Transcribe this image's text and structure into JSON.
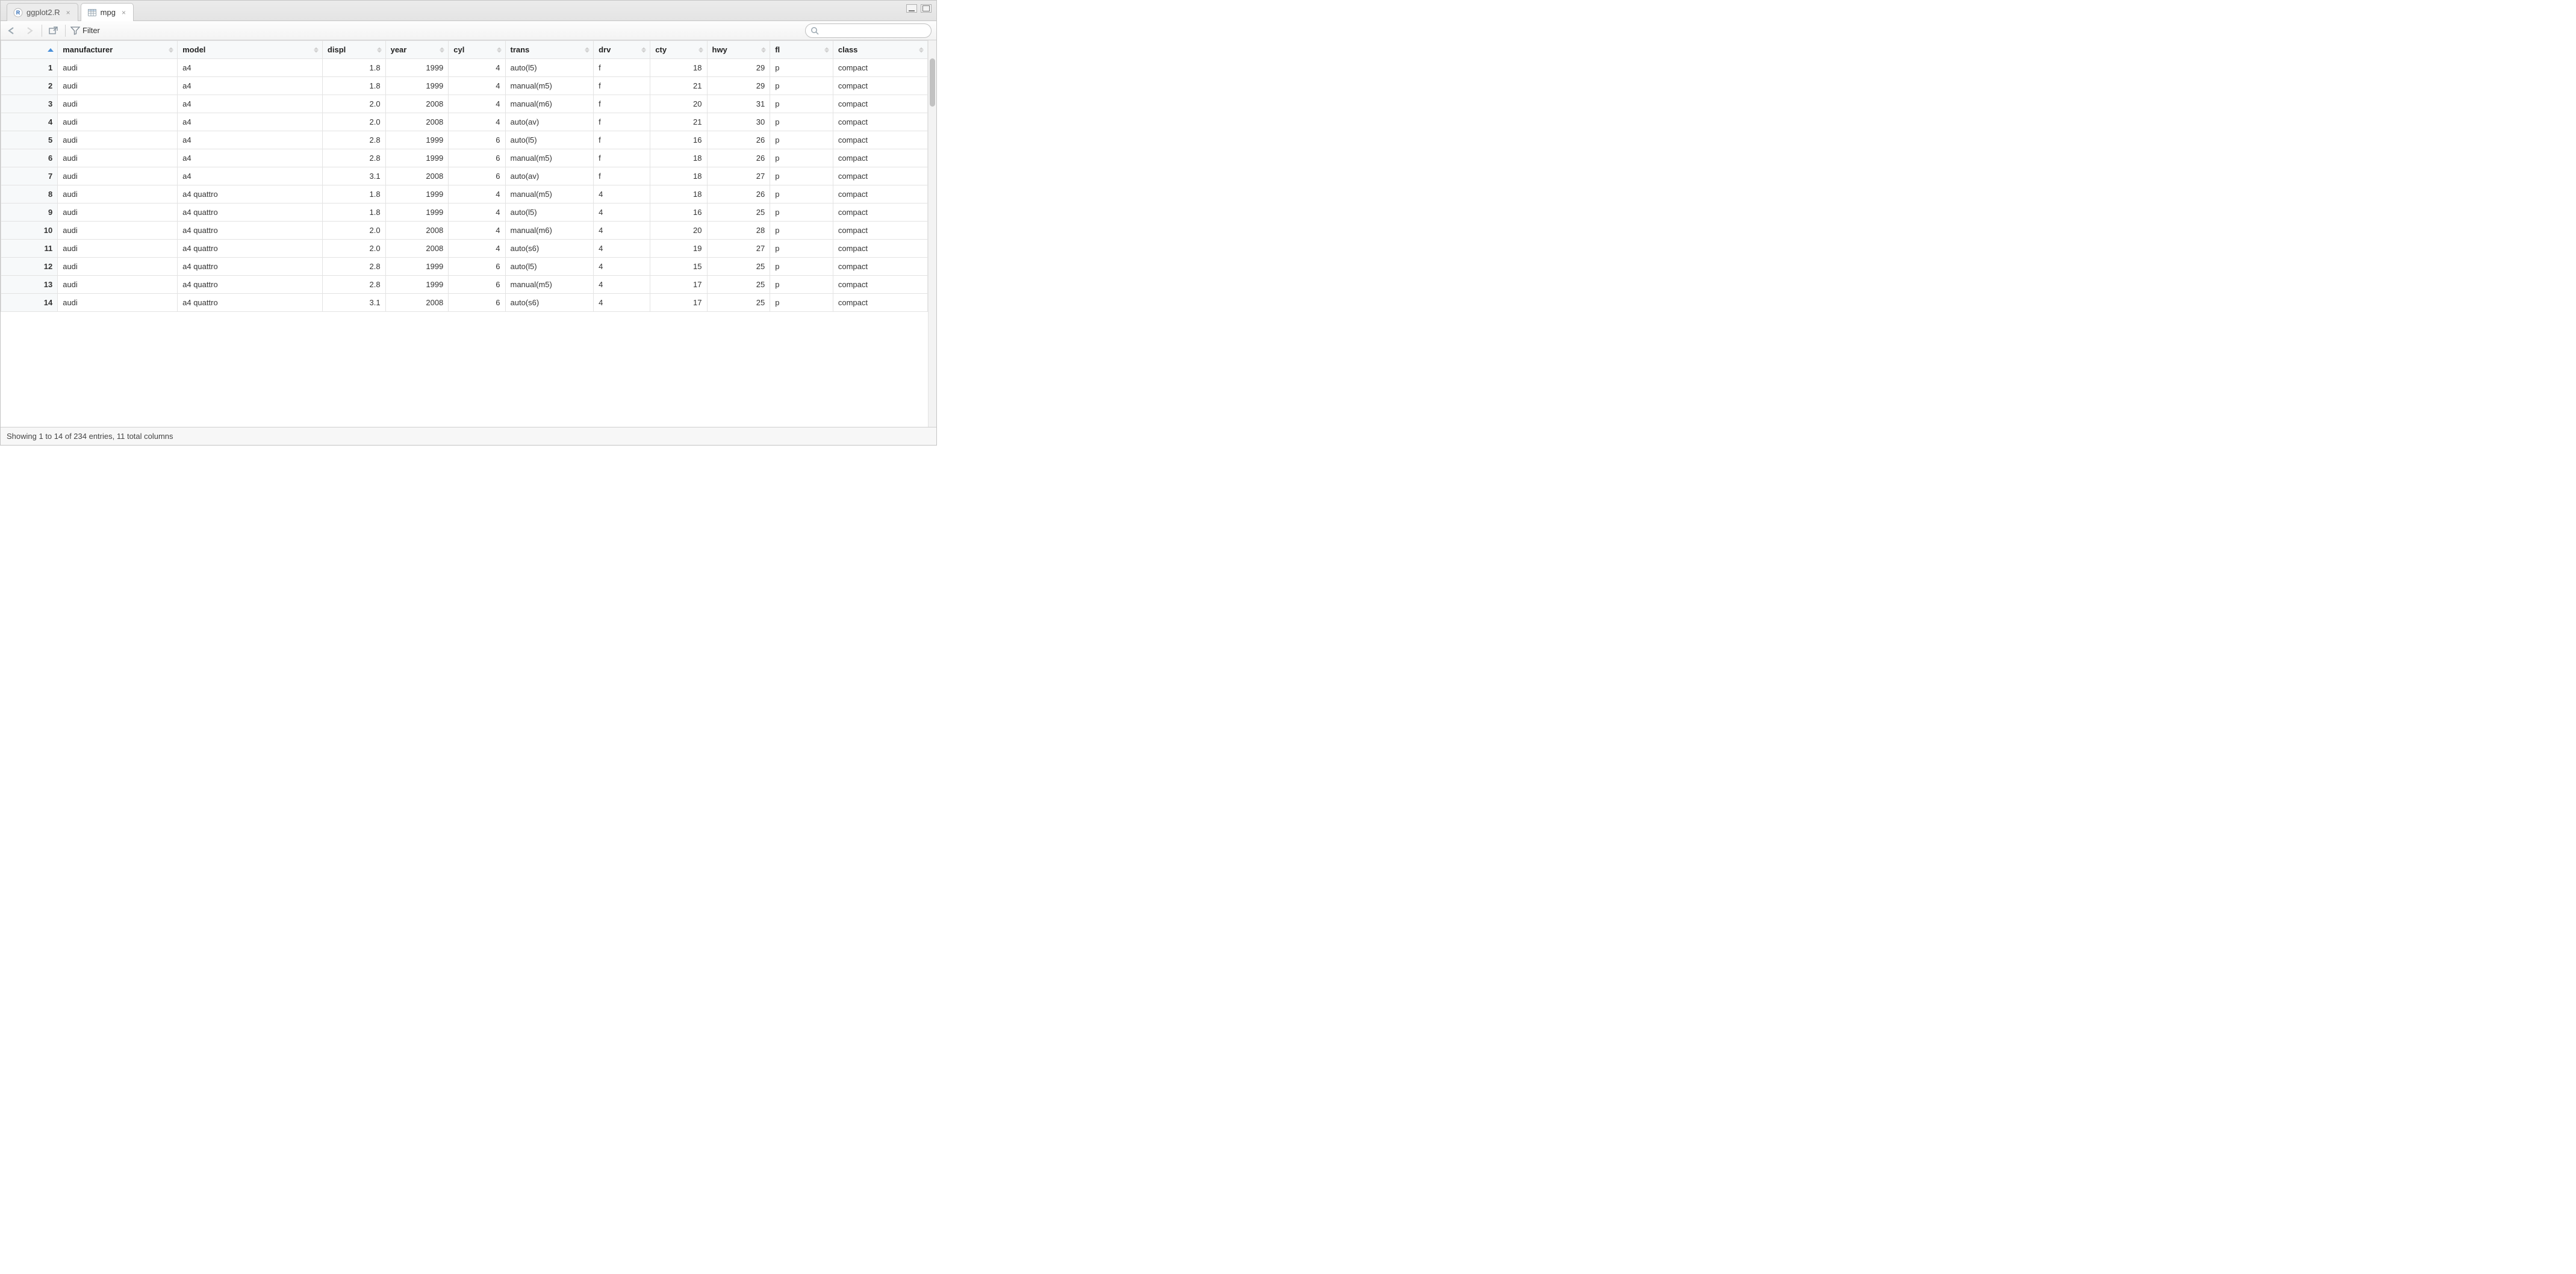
{
  "tabs": [
    {
      "label": "ggplot2.R",
      "active": false,
      "icon": "r-file"
    },
    {
      "label": "mpg",
      "active": true,
      "icon": "table"
    }
  ],
  "toolbar": {
    "filter_label": "Filter",
    "search_placeholder": ""
  },
  "table": {
    "row_number_sorted": "asc",
    "columns": [
      {
        "key": "manufacturer",
        "label": "manufacturer",
        "type": "text"
      },
      {
        "key": "model",
        "label": "model",
        "type": "text"
      },
      {
        "key": "displ",
        "label": "displ",
        "type": "num",
        "decimals": 1
      },
      {
        "key": "year",
        "label": "year",
        "type": "num"
      },
      {
        "key": "cyl",
        "label": "cyl",
        "type": "num"
      },
      {
        "key": "trans",
        "label": "trans",
        "type": "text"
      },
      {
        "key": "drv",
        "label": "drv",
        "type": "text"
      },
      {
        "key": "cty",
        "label": "cty",
        "type": "num"
      },
      {
        "key": "hwy",
        "label": "hwy",
        "type": "num"
      },
      {
        "key": "fl",
        "label": "fl",
        "type": "text"
      },
      {
        "key": "class",
        "label": "class",
        "type": "text"
      }
    ],
    "rows": [
      {
        "n": 1,
        "manufacturer": "audi",
        "model": "a4",
        "displ": 1.8,
        "year": 1999,
        "cyl": 4,
        "trans": "auto(l5)",
        "drv": "f",
        "cty": 18,
        "hwy": 29,
        "fl": "p",
        "class": "compact"
      },
      {
        "n": 2,
        "manufacturer": "audi",
        "model": "a4",
        "displ": 1.8,
        "year": 1999,
        "cyl": 4,
        "trans": "manual(m5)",
        "drv": "f",
        "cty": 21,
        "hwy": 29,
        "fl": "p",
        "class": "compact"
      },
      {
        "n": 3,
        "manufacturer": "audi",
        "model": "a4",
        "displ": 2.0,
        "year": 2008,
        "cyl": 4,
        "trans": "manual(m6)",
        "drv": "f",
        "cty": 20,
        "hwy": 31,
        "fl": "p",
        "class": "compact"
      },
      {
        "n": 4,
        "manufacturer": "audi",
        "model": "a4",
        "displ": 2.0,
        "year": 2008,
        "cyl": 4,
        "trans": "auto(av)",
        "drv": "f",
        "cty": 21,
        "hwy": 30,
        "fl": "p",
        "class": "compact"
      },
      {
        "n": 5,
        "manufacturer": "audi",
        "model": "a4",
        "displ": 2.8,
        "year": 1999,
        "cyl": 6,
        "trans": "auto(l5)",
        "drv": "f",
        "cty": 16,
        "hwy": 26,
        "fl": "p",
        "class": "compact"
      },
      {
        "n": 6,
        "manufacturer": "audi",
        "model": "a4",
        "displ": 2.8,
        "year": 1999,
        "cyl": 6,
        "trans": "manual(m5)",
        "drv": "f",
        "cty": 18,
        "hwy": 26,
        "fl": "p",
        "class": "compact"
      },
      {
        "n": 7,
        "manufacturer": "audi",
        "model": "a4",
        "displ": 3.1,
        "year": 2008,
        "cyl": 6,
        "trans": "auto(av)",
        "drv": "f",
        "cty": 18,
        "hwy": 27,
        "fl": "p",
        "class": "compact"
      },
      {
        "n": 8,
        "manufacturer": "audi",
        "model": "a4 quattro",
        "displ": 1.8,
        "year": 1999,
        "cyl": 4,
        "trans": "manual(m5)",
        "drv": "4",
        "cty": 18,
        "hwy": 26,
        "fl": "p",
        "class": "compact"
      },
      {
        "n": 9,
        "manufacturer": "audi",
        "model": "a4 quattro",
        "displ": 1.8,
        "year": 1999,
        "cyl": 4,
        "trans": "auto(l5)",
        "drv": "4",
        "cty": 16,
        "hwy": 25,
        "fl": "p",
        "class": "compact"
      },
      {
        "n": 10,
        "manufacturer": "audi",
        "model": "a4 quattro",
        "displ": 2.0,
        "year": 2008,
        "cyl": 4,
        "trans": "manual(m6)",
        "drv": "4",
        "cty": 20,
        "hwy": 28,
        "fl": "p",
        "class": "compact"
      },
      {
        "n": 11,
        "manufacturer": "audi",
        "model": "a4 quattro",
        "displ": 2.0,
        "year": 2008,
        "cyl": 4,
        "trans": "auto(s6)",
        "drv": "4",
        "cty": 19,
        "hwy": 27,
        "fl": "p",
        "class": "compact"
      },
      {
        "n": 12,
        "manufacturer": "audi",
        "model": "a4 quattro",
        "displ": 2.8,
        "year": 1999,
        "cyl": 6,
        "trans": "auto(l5)",
        "drv": "4",
        "cty": 15,
        "hwy": 25,
        "fl": "p",
        "class": "compact"
      },
      {
        "n": 13,
        "manufacturer": "audi",
        "model": "a4 quattro",
        "displ": 2.8,
        "year": 1999,
        "cyl": 6,
        "trans": "manual(m5)",
        "drv": "4",
        "cty": 17,
        "hwy": 25,
        "fl": "p",
        "class": "compact"
      },
      {
        "n": 14,
        "manufacturer": "audi",
        "model": "a4 quattro",
        "displ": 3.1,
        "year": 2008,
        "cyl": 6,
        "trans": "auto(s6)",
        "drv": "4",
        "cty": 17,
        "hwy": 25,
        "fl": "p",
        "class": "compact"
      }
    ]
  },
  "status": {
    "text": "Showing 1 to 14 of 234 entries, 11 total columns"
  },
  "colors": {
    "accent": "#4a90d9",
    "border": "#e3e3e3",
    "header_bg": "#f7f9fa",
    "chrome_bg": "#ebebeb"
  }
}
